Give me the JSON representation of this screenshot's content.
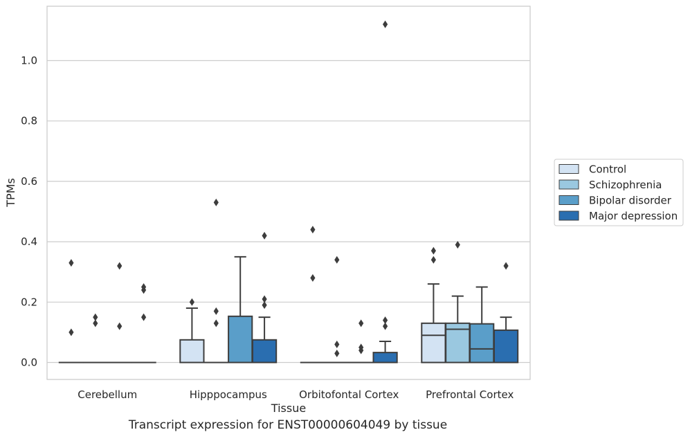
{
  "caption": "Transcript expression for ENST00000604049 by tissue",
  "chart_data": {
    "type": "box",
    "xlabel": "Tissue",
    "ylabel": "TPMs",
    "ylim": [
      -0.055,
      1.18
    ],
    "yticks": [
      0.0,
      0.2,
      0.4,
      0.6,
      0.8,
      1.0
    ],
    "ytick_labels": [
      "0.0",
      "0.2",
      "0.4",
      "0.6",
      "0.8",
      "1.0"
    ],
    "grid": "horizontal",
    "legend_position": "right",
    "categories": [
      "Cerebellum",
      "Hipppocampus",
      "Orbitofontal Cortex",
      "Prefrontal Cortex"
    ],
    "series": [
      {
        "name": "Control",
        "color": "#d3e3f3",
        "boxes": [
          {
            "q1": 0,
            "median": 0,
            "q3": 0,
            "whisker_low": 0,
            "whisker_high": 0,
            "outliers": [
              0.33,
              0.1
            ]
          },
          {
            "q1": 0,
            "median": 0,
            "q3": 0.075,
            "whisker_low": 0,
            "whisker_high": 0.18,
            "outliers": [
              0.2
            ]
          },
          {
            "q1": 0,
            "median": 0,
            "q3": 0,
            "whisker_low": 0,
            "whisker_high": 0,
            "outliers": [
              0.44,
              0.28
            ]
          },
          {
            "q1": 0,
            "median": 0.09,
            "q3": 0.13,
            "whisker_low": 0,
            "whisker_high": 0.26,
            "outliers": [
              0.37,
              0.34
            ]
          }
        ]
      },
      {
        "name": "Schizophrenia",
        "color": "#9ac8e0",
        "boxes": [
          {
            "q1": 0,
            "median": 0,
            "q3": 0,
            "whisker_low": 0,
            "whisker_high": 0,
            "outliers": [
              0.15,
              0.13
            ]
          },
          {
            "q1": 0,
            "median": 0,
            "q3": 0,
            "whisker_low": 0,
            "whisker_high": 0,
            "outliers": [
              0.53,
              0.17,
              0.13
            ]
          },
          {
            "q1": 0,
            "median": 0,
            "q3": 0,
            "whisker_low": 0,
            "whisker_high": 0,
            "outliers": [
              0.34,
              0.06,
              0.03
            ]
          },
          {
            "q1": 0,
            "median": 0.11,
            "q3": 0.13,
            "whisker_low": 0,
            "whisker_high": 0.22,
            "outliers": [
              0.39
            ]
          }
        ]
      },
      {
        "name": "Bipolar disorder",
        "color": "#5a9ec9",
        "boxes": [
          {
            "q1": 0,
            "median": 0,
            "q3": 0,
            "whisker_low": 0,
            "whisker_high": 0,
            "outliers": [
              0.32,
              0.12
            ]
          },
          {
            "q1": 0,
            "median": 0,
            "q3": 0.153,
            "whisker_low": 0,
            "whisker_high": 0.35,
            "outliers": []
          },
          {
            "q1": 0,
            "median": 0,
            "q3": 0,
            "whisker_low": 0,
            "whisker_high": 0,
            "outliers": [
              0.13,
              0.05,
              0.04
            ]
          },
          {
            "q1": 0,
            "median": 0.045,
            "q3": 0.128,
            "whisker_low": 0,
            "whisker_high": 0.25,
            "outliers": []
          }
        ]
      },
      {
        "name": "Major depression",
        "color": "#2a6eb0",
        "boxes": [
          {
            "q1": 0,
            "median": 0,
            "q3": 0,
            "whisker_low": 0,
            "whisker_high": 0,
            "outliers": [
              0.25,
              0.24,
              0.15
            ]
          },
          {
            "q1": 0,
            "median": 0,
            "q3": 0.075,
            "whisker_low": 0,
            "whisker_high": 0.15,
            "outliers": [
              0.42,
              0.21,
              0.19
            ]
          },
          {
            "q1": 0,
            "median": 0,
            "q3": 0.033,
            "whisker_low": 0,
            "whisker_high": 0.07,
            "outliers": [
              1.12,
              0.14,
              0.12
            ]
          },
          {
            "q1": 0,
            "median": 0,
            "q3": 0.107,
            "whisker_low": 0,
            "whisker_high": 0.15,
            "outliers": [
              0.32
            ]
          }
        ]
      }
    ]
  }
}
